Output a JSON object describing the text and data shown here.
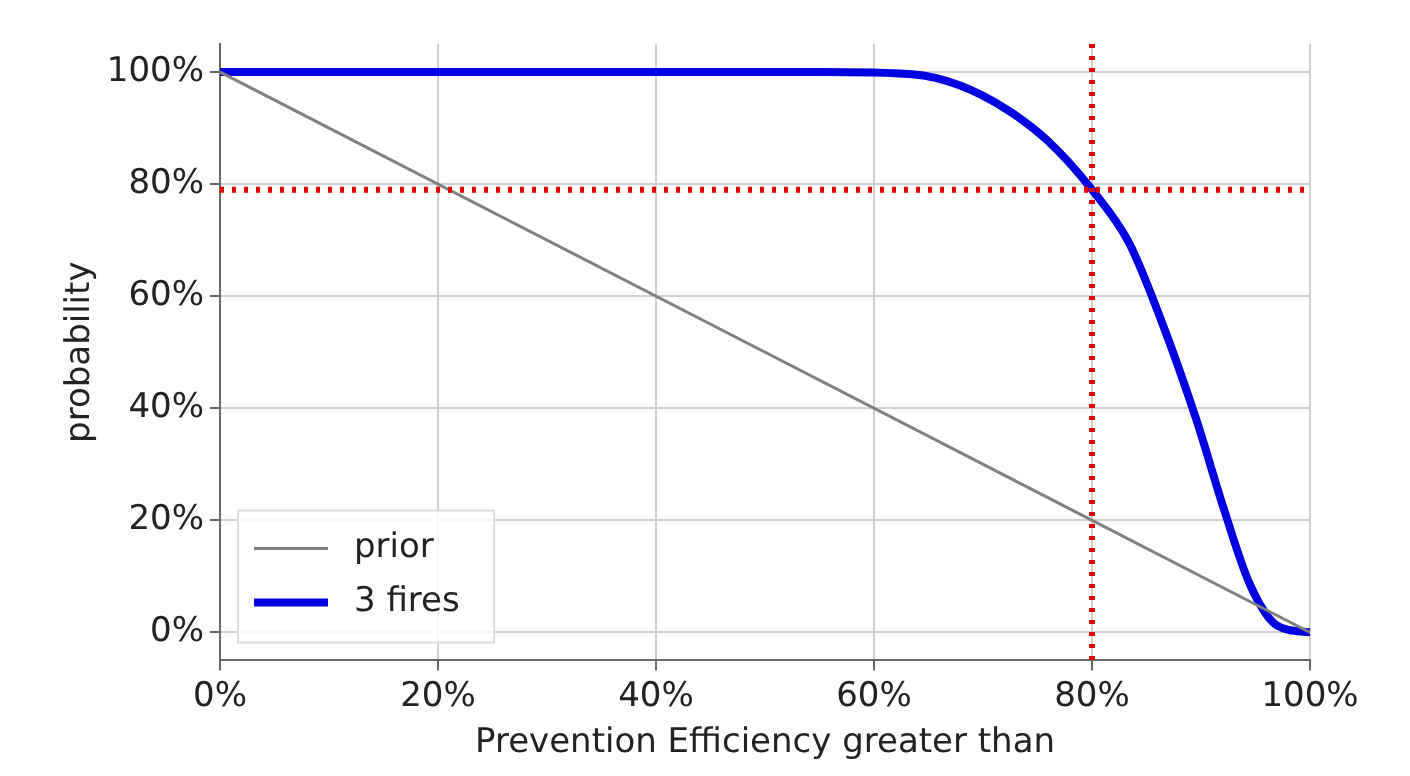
{
  "chart_data": {
    "type": "line",
    "xlabel": "Prevention Efficiency greater than",
    "ylabel": "probability",
    "xlim": [
      0,
      100
    ],
    "xticks": [
      {
        "value": 0,
        "label": "0%"
      },
      {
        "value": 20,
        "label": "20%"
      },
      {
        "value": 40,
        "label": "40%"
      },
      {
        "value": 60,
        "label": "60%"
      },
      {
        "value": 80,
        "label": "80%"
      },
      {
        "value": 100,
        "label": "100%"
      }
    ],
    "ylim": [
      -5,
      105
    ],
    "yticks": [
      {
        "value": 0,
        "label": "0%"
      },
      {
        "value": 20,
        "label": "20%"
      },
      {
        "value": 40,
        "label": "40%"
      },
      {
        "value": 60,
        "label": "60%"
      },
      {
        "value": 80,
        "label": "80%"
      },
      {
        "value": 100,
        "label": "100%"
      }
    ],
    "series": [
      {
        "name": "prior",
        "color": "#808080",
        "x": [
          0,
          100
        ],
        "values": [
          100,
          0
        ]
      },
      {
        "name": "3 fires",
        "color": "#0000e0",
        "x": [
          0,
          20,
          40,
          55,
          63.5,
          67.9,
          72.2,
          75.9,
          80,
          83.4,
          86.5,
          89.6,
          92.1,
          94.5,
          97,
          100
        ],
        "values": [
          100,
          100,
          100,
          100,
          99.6,
          97.6,
          93.3,
          87.8,
          79,
          69.5,
          54.9,
          37.8,
          22,
          8.5,
          1.2,
          0
        ]
      }
    ],
    "ref_lines": [
      {
        "axis": "x",
        "value": 80,
        "color": "#e00000",
        "line_style": "dotted"
      },
      {
        "axis": "y",
        "value": 79,
        "color": "#e00000",
        "line_style": "dotted"
      }
    ],
    "grid": true,
    "legend": "bottom left",
    "marker": "none",
    "line_style": "solid"
  }
}
